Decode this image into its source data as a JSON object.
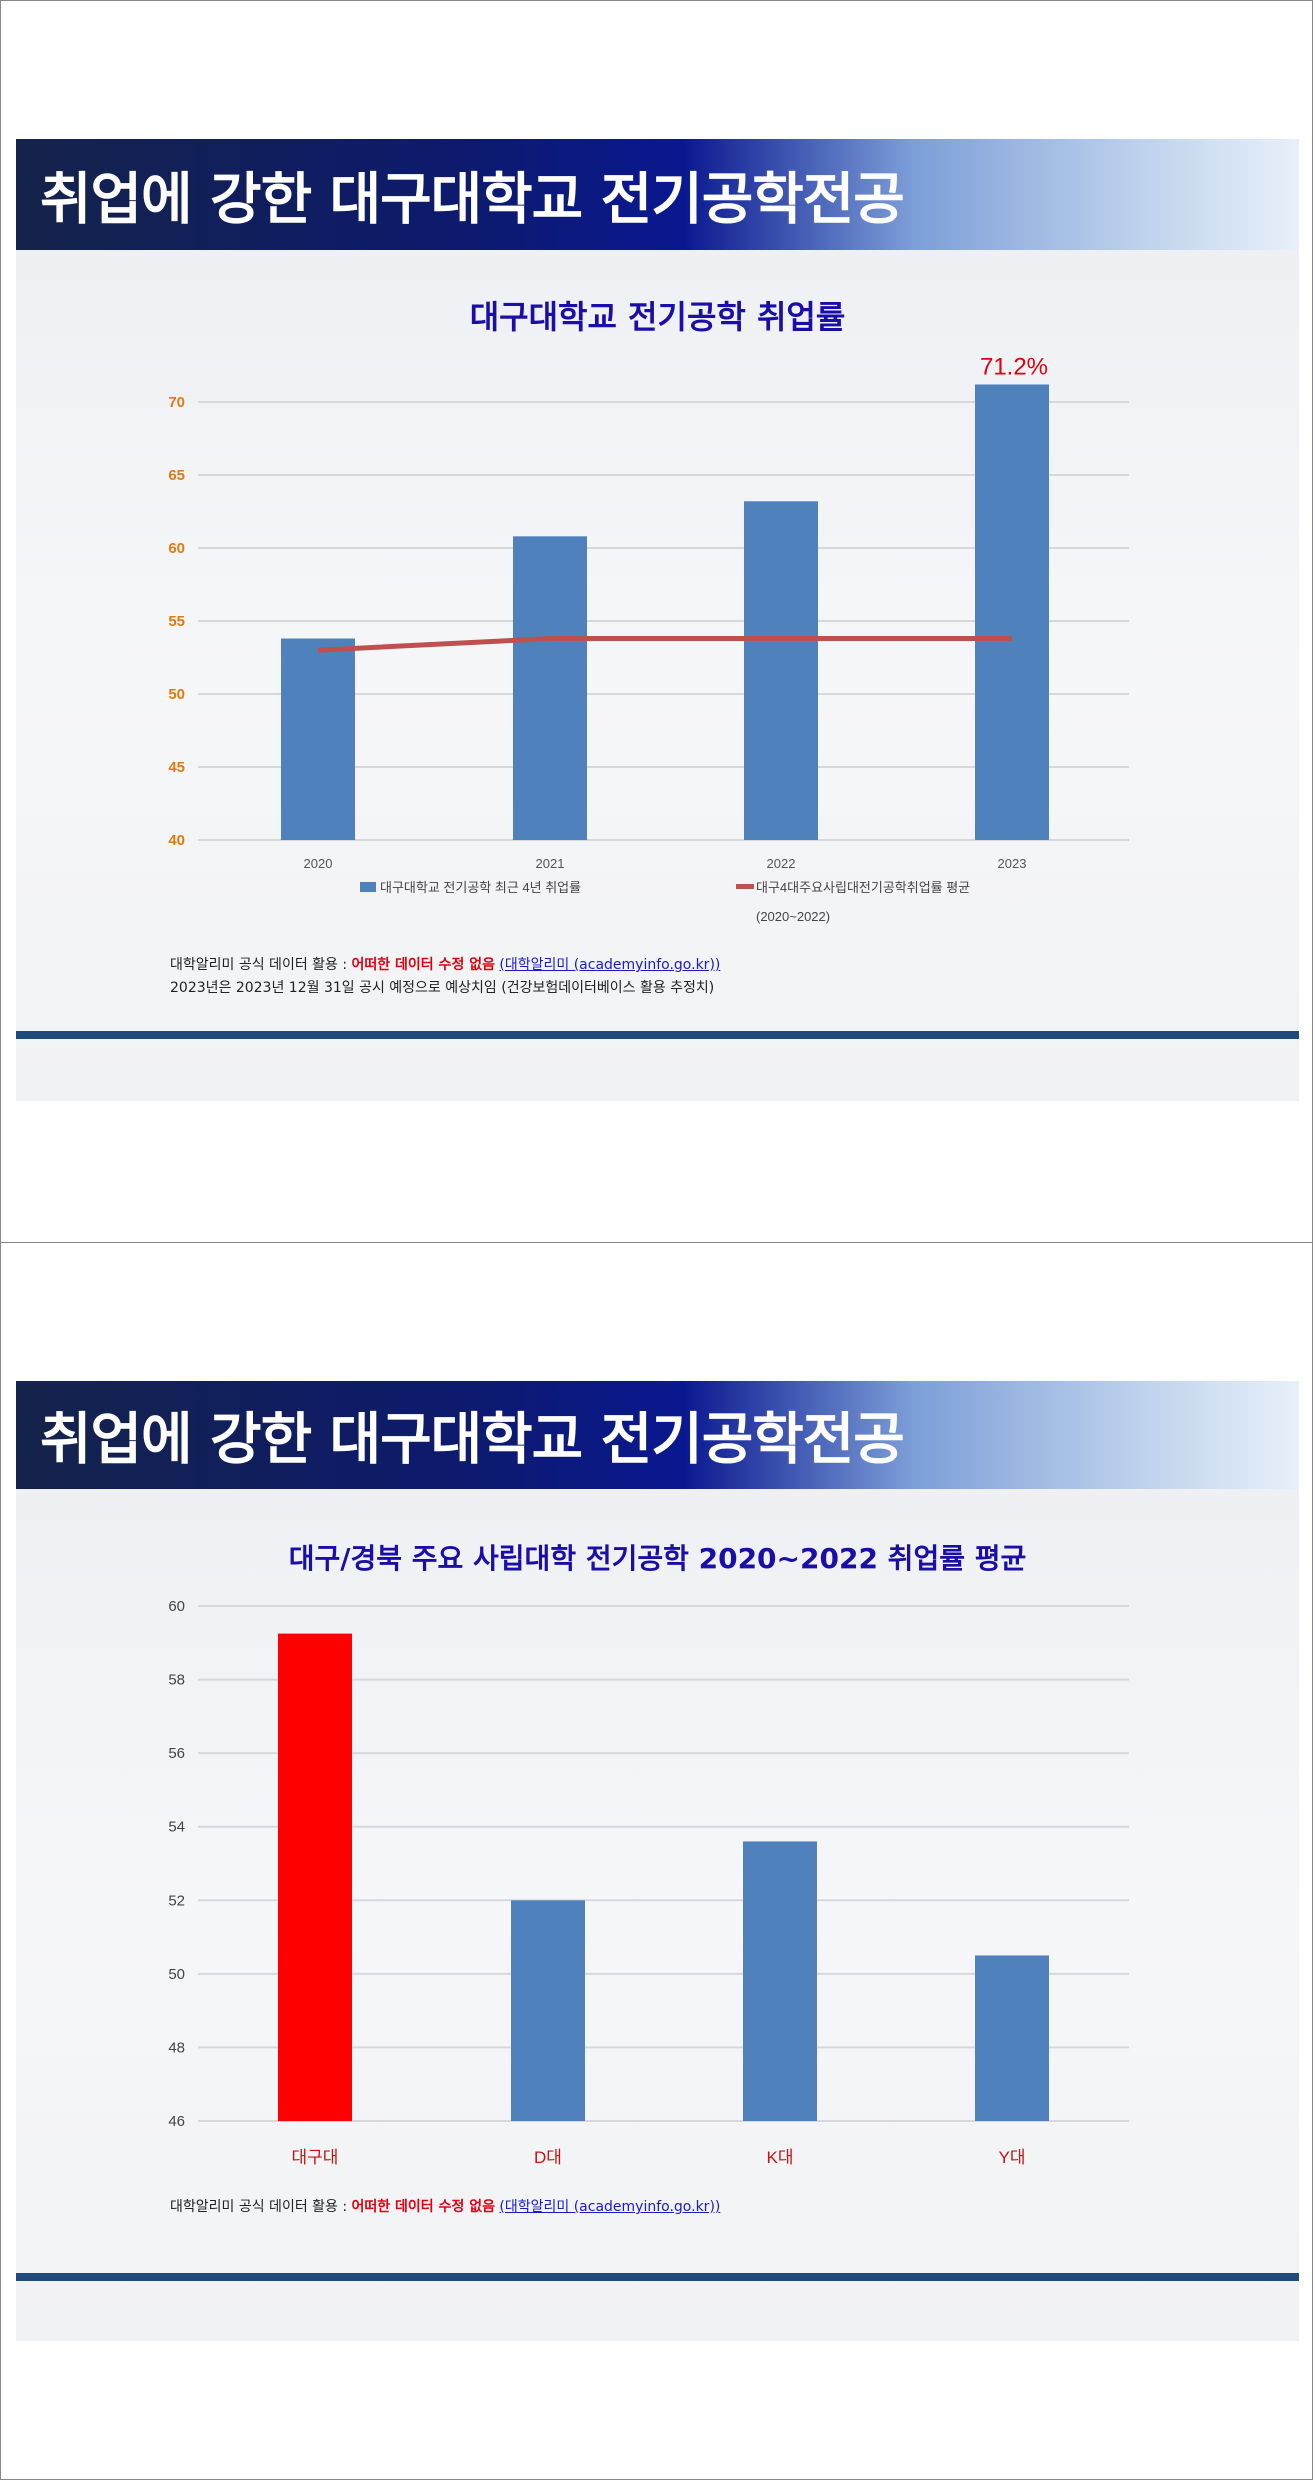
{
  "slides": [
    {
      "heading": "취업에 강한 대구대학교 전기공학전공",
      "note_prefix": "대학알리미 공식 데이터 활용 : ",
      "note_emphasis": "어떠한 데이터 수정 없음",
      "note_link": "(대학알리미 (academyinfo.go.kr))",
      "note_line2": "2023년은 2023년 12월 31일 공시 예정으로 예상치임 (건강보험데이터베이스 활용 추정치)"
    },
    {
      "heading": "취업에 강한 대구대학교 전기공학전공",
      "note_prefix": "대학알리미 공식 데이터 활용 : ",
      "note_emphasis": "어떠한 데이터 수정 없음",
      "note_link": "(대학알리미 (academyinfo.go.kr))"
    }
  ],
  "colors": {
    "bar": "#4f81bd",
    "line": "#c0504d",
    "highlight_bar": "#ff0000",
    "title": "#1a0da8",
    "ytick_chart1": "#e07b10",
    "annotation": "#e00010"
  },
  "chart_data": [
    {
      "type": "bar",
      "title": "대구대학교 전기공학 취업률",
      "categories": [
        "2020",
        "2021",
        "2022",
        "2023"
      ],
      "ylim": [
        40,
        72
      ],
      "yticks": [
        "40",
        "45",
        "50",
        "55",
        "60",
        "65",
        "70"
      ],
      "grid": true,
      "legend_position": "bottom",
      "series": [
        {
          "name": "대구대학교 전기공학 최근 4년 취업률",
          "type": "bar",
          "values": [
            53.8,
            60.8,
            63.2,
            71.2
          ]
        },
        {
          "name": "대구4대주요사립대전기공학취업률 평균",
          "name_line2": "(2020~2022)",
          "type": "line",
          "values": [
            53.0,
            53.8,
            53.8,
            53.8
          ]
        }
      ],
      "annotation": "71.2%"
    },
    {
      "type": "bar",
      "title": "대구/경북 주요 사립대학  전기공학 2020~2022 취업률 평균",
      "categories": [
        "대구대",
        "D대",
        "K대",
        "Y대"
      ],
      "ylim": [
        46,
        60
      ],
      "yticks": [
        "46",
        "48",
        "50",
        "52",
        "54",
        "56",
        "58",
        "60"
      ],
      "grid": true,
      "values": [
        59.25,
        52.0,
        53.6,
        50.5
      ],
      "highlighted_category": "대구대"
    }
  ]
}
